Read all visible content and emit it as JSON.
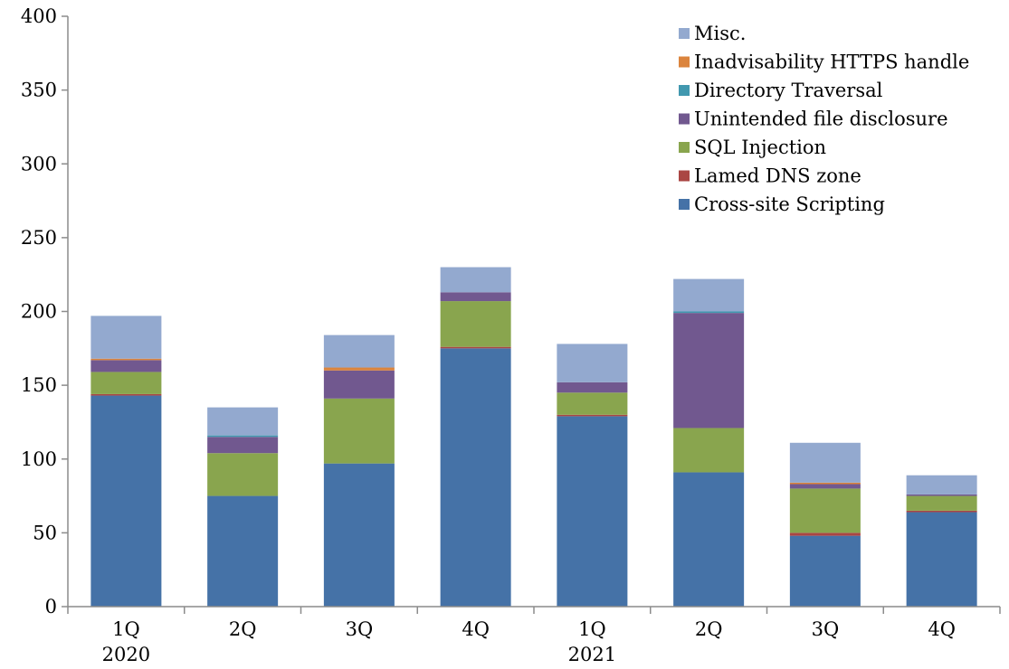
{
  "chart_data": {
    "type": "bar",
    "stacked": true,
    "categories": [
      [
        "1Q",
        "2020"
      ],
      [
        "2Q",
        ""
      ],
      [
        "3Q",
        ""
      ],
      [
        "4Q",
        ""
      ],
      [
        "1Q",
        "2021"
      ],
      [
        "2Q",
        ""
      ],
      [
        "3Q",
        ""
      ],
      [
        "4Q",
        ""
      ]
    ],
    "ylim": [
      0,
      400
    ],
    "yticks": [
      0,
      50,
      100,
      150,
      200,
      250,
      300,
      350,
      400
    ],
    "grid": false,
    "legend_position": "top-right",
    "series": [
      {
        "name": "Cross-site Scripting",
        "color": "#4572a7",
        "values": [
          143,
          75,
          97,
          175,
          129,
          91,
          48,
          64
        ]
      },
      {
        "name": "Lamed DNS zone",
        "color": "#aa4643",
        "values": [
          1,
          0,
          0,
          1,
          1,
          0,
          2,
          1
        ]
      },
      {
        "name": "SQL Injection",
        "color": "#89a54e",
        "values": [
          15,
          29,
          44,
          31,
          15,
          30,
          30,
          10
        ]
      },
      {
        "name": "Unintended file disclosure",
        "color": "#71588f",
        "values": [
          8,
          11,
          19,
          6,
          7,
          78,
          3,
          1
        ]
      },
      {
        "name": "Directory Traversal",
        "color": "#4198af",
        "values": [
          0,
          1,
          0,
          0,
          0,
          1,
          0,
          0
        ]
      },
      {
        "name": "Inadvisability HTTPS handle",
        "color": "#db843d",
        "values": [
          1,
          0,
          2,
          0,
          0,
          0,
          1,
          0
        ]
      },
      {
        "name": "Misc.",
        "color": "#93a9cf",
        "values": [
          29,
          19,
          22,
          17,
          26,
          22,
          27,
          13
        ]
      }
    ]
  }
}
